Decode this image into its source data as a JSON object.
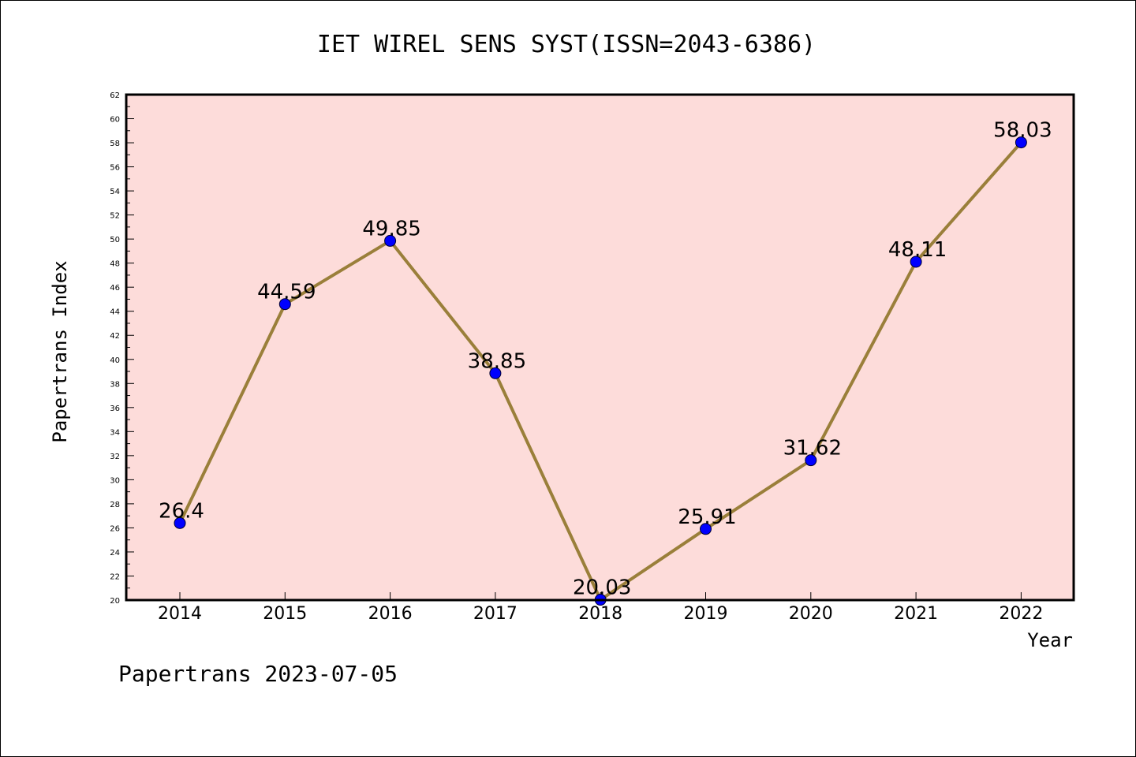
{
  "chart_data": {
    "type": "line",
    "title": "IET WIREL SENS SYST(ISSN=2043-6386)",
    "xlabel": "Year",
    "ylabel": "Papertrans Index",
    "categories": [
      "2014",
      "2015",
      "2016",
      "2017",
      "2018",
      "2019",
      "2020",
      "2021",
      "2022"
    ],
    "values": [
      26.4,
      44.59,
      49.85,
      38.85,
      20.03,
      25.91,
      31.62,
      48.11,
      58.03
    ],
    "value_labels": [
      "26.4",
      "44.59",
      "49.85",
      "38.85",
      "20.03",
      "25.91",
      "31.62",
      "48.11",
      "58.03"
    ],
    "ylim": [
      20,
      62
    ],
    "ytick_step": 2,
    "grid": false,
    "colors": {
      "plot_background": "#fddcda",
      "line": "#9a7f3a",
      "marker": "#0000ff"
    }
  },
  "footer": "Papertrans 2023-07-05"
}
